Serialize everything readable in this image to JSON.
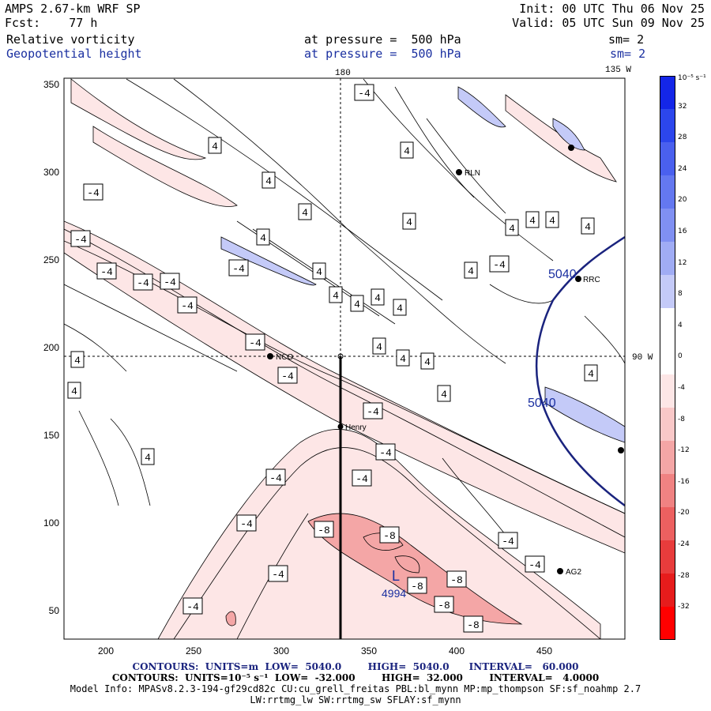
{
  "header": {
    "model": "AMPS 2.67-km WRF SP",
    "forecast": "Fcst:    77 h",
    "init": "Init: 00 UTC Thu 06 Nov 25",
    "valid": "Valid: 05 UTC Sun 09 Nov 25",
    "field1": {
      "name": "Relative vorticity",
      "level": "at pressure =  500 hPa",
      "smooth": "sm= 2"
    },
    "field2": {
      "name": "Geopotential height",
      "level": "at pressure =  500 hPa",
      "smooth": "sm= 2"
    }
  },
  "map": {
    "x_ticks": [
      "200",
      "250",
      "300",
      "350",
      "400",
      "450"
    ],
    "y_ticks": [
      "350",
      "300",
      "250",
      "200",
      "150",
      "100",
      "50"
    ],
    "meridian_180": "180",
    "meridian_135w": "135 W",
    "parallel_90w": "90 W",
    "stations": [
      "RLN",
      "RRC",
      "NCO",
      "Henry",
      "AG2"
    ],
    "height_labels": [
      "5040",
      "5040"
    ],
    "low_label": "L",
    "low_value": "4994",
    "vort_labels_pos": [
      "4",
      "4",
      "4",
      "4",
      "4",
      "4",
      "4",
      "4",
      "4",
      "4",
      "4",
      "4",
      "4",
      "4",
      "4",
      "4",
      "4",
      "4",
      "4",
      "4",
      "4",
      "4",
      "4",
      "4"
    ],
    "vort_labels_neg": [
      "-4",
      "-4",
      "-4",
      "-4",
      "-4",
      "-4",
      "-4",
      "-4",
      "-4",
      "-4",
      "-4",
      "-4",
      "-4",
      "-4",
      "-4",
      "-4",
      "-4",
      "-4",
      "-4",
      "-4",
      "-8",
      "-8",
      "-8",
      "-8",
      "-8",
      "-8"
    ]
  },
  "colorbar": {
    "units": "10⁻⁵ s⁻¹",
    "labels": [
      "32",
      "28",
      "24",
      "20",
      "16",
      "12",
      "8",
      "4",
      "0",
      "-4",
      "-8",
      "-12",
      "-16",
      "-20",
      "-24",
      "-28",
      "-32"
    ],
    "colors": [
      "#1426e8",
      "#2c46ec",
      "#4a60ee",
      "#6478f0",
      "#8090f2",
      "#a0acf4",
      "#c4caf8",
      "#ffffff",
      "#ffffff",
      "#fde6e6",
      "#f9c8c8",
      "#f4a6a6",
      "#f08282",
      "#ec6060",
      "#e83c3c",
      "#e61c1c",
      "#ff0000"
    ]
  },
  "footer": {
    "line1": "CONTOURS:  UNITS=m  LOW=  5040.0        HIGH=  5040.0      INTERVAL=   60.000",
    "line2": "CONTOURS:  UNITS=10⁻⁵ s⁻¹  LOW=  -32.000        HIGH=  32.000        INTERVAL=   4.0000",
    "line3": "Model Info: MPASv8.2.3-194-gf29cd82c CU:cu_grell_freitas PBL:bl_mynn MP:mp_thompson SF:sf_noahmp 2.7",
    "line4": "LW:rrtmg_lw SW:rrtmg_sw SFLAY:sf_mynn"
  }
}
